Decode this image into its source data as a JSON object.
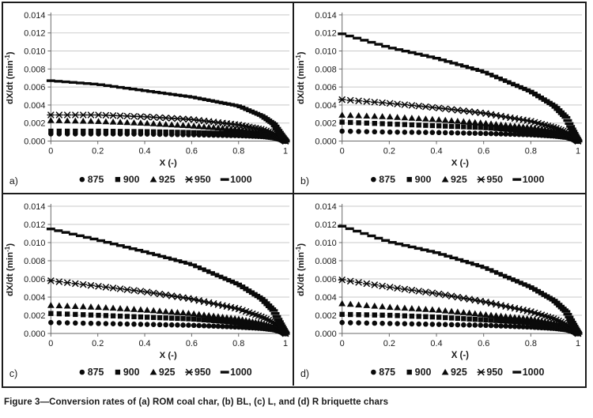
{
  "caption": "Figure 3—Conversion rates of (a) ROM coal char, (b) BL, (c) L, and (d) R briquette chars",
  "colors": {
    "marker": "#0a0a0a",
    "gridline": "#c8c8c8",
    "axis": "#6a6a6a",
    "text": "#1a1a1a",
    "border": "#1c1c1c",
    "background": "#ffffff"
  },
  "chart_data": [
    {
      "id": "a",
      "panel_label": "a)",
      "material": "ROM coal char",
      "type": "scatter",
      "xlabel": "X (-)",
      "ylabel": "dX/dt (min⁻¹)",
      "xlim": [
        0,
        1
      ],
      "ylim": [
        0,
        0.014
      ],
      "xticklabels": [
        "0",
        "0.2",
        "0.4",
        "0.6",
        "0.8",
        "1"
      ],
      "yticklabels": [
        "0.000",
        "0.002",
        "0.004",
        "0.006",
        "0.008",
        "0.010",
        "0.012",
        "0.014"
      ],
      "grid": "horizontal",
      "legend_position": "bottom",
      "x_knots": [
        0,
        0.2,
        0.4,
        0.6,
        0.8,
        0.9,
        0.95,
        1
      ],
      "series": [
        {
          "name": "875",
          "marker": "circle",
          "values": [
            0.0008,
            0.0008,
            0.00078,
            0.0007,
            0.0006,
            0.0005,
            0.00035,
            0
          ]
        },
        {
          "name": "900",
          "marker": "square",
          "values": [
            0.0011,
            0.0011,
            0.00105,
            0.00095,
            0.0008,
            0.00062,
            0.00045,
            0
          ]
        },
        {
          "name": "925",
          "marker": "triangle",
          "values": [
            0.0023,
            0.0022,
            0.002,
            0.0017,
            0.0013,
            0.00095,
            0.00065,
            0
          ]
        },
        {
          "name": "950",
          "marker": "star",
          "values": [
            0.0029,
            0.0029,
            0.0027,
            0.0024,
            0.0018,
            0.0013,
            0.00085,
            0
          ]
        },
        {
          "name": "1000",
          "marker": "dash",
          "values": [
            0.0067,
            0.0063,
            0.0056,
            0.0049,
            0.0039,
            0.0028,
            0.0019,
            0
          ]
        }
      ]
    },
    {
      "id": "b",
      "panel_label": "b)",
      "material": "BL briquette char",
      "type": "scatter",
      "xlabel": "X (-)",
      "ylabel": "dX/dt (min⁻¹)",
      "xlim": [
        0,
        1
      ],
      "ylim": [
        0,
        0.014
      ],
      "xticklabels": [
        "0",
        "0.2",
        "0.4",
        "0.6",
        "0.8",
        "1"
      ],
      "yticklabels": [
        "0.000",
        "0.002",
        "0.004",
        "0.006",
        "0.008",
        "0.010",
        "0.012",
        "0.014"
      ],
      "grid": "horizontal",
      "legend_position": "bottom",
      "x_knots": [
        0,
        0.2,
        0.4,
        0.6,
        0.8,
        0.9,
        0.95,
        1
      ],
      "series": [
        {
          "name": "875",
          "marker": "circle",
          "values": [
            0.0011,
            0.001,
            0.00095,
            0.00085,
            0.0007,
            0.00055,
            0.0004,
            0
          ]
        },
        {
          "name": "900",
          "marker": "square",
          "values": [
            0.0021,
            0.0019,
            0.0017,
            0.0015,
            0.0011,
            0.0008,
            0.00055,
            0
          ]
        },
        {
          "name": "925",
          "marker": "triangle",
          "values": [
            0.0029,
            0.0027,
            0.0024,
            0.002,
            0.0015,
            0.0011,
            0.0007,
            0
          ]
        },
        {
          "name": "950",
          "marker": "star",
          "values": [
            0.0046,
            0.0042,
            0.0037,
            0.0031,
            0.0022,
            0.0015,
            0.001,
            0
          ]
        },
        {
          "name": "1000",
          "marker": "dash",
          "values": [
            0.0119,
            0.0104,
            0.0092,
            0.0077,
            0.0055,
            0.0039,
            0.0026,
            0
          ]
        }
      ]
    },
    {
      "id": "c",
      "panel_label": "c)",
      "material": "L briquette char",
      "type": "scatter",
      "xlabel": "X (-)",
      "ylabel": "dX/dt (min⁻¹)",
      "xlim": [
        0,
        1
      ],
      "ylim": [
        0,
        0.014
      ],
      "xticklabels": [
        "0",
        "0.2",
        "0.4",
        "0.6",
        "0.8",
        "1"
      ],
      "yticklabels": [
        "0.000",
        "0.002",
        "0.004",
        "0.006",
        "0.008",
        "0.010",
        "0.012",
        "0.014"
      ],
      "grid": "horizontal",
      "legend_position": "bottom",
      "x_knots": [
        0,
        0.2,
        0.4,
        0.6,
        0.8,
        0.9,
        0.95,
        1
      ],
      "series": [
        {
          "name": "875",
          "marker": "circle",
          "values": [
            0.0012,
            0.0011,
            0.001,
            0.0009,
            0.0007,
            0.00055,
            0.0004,
            0
          ]
        },
        {
          "name": "900",
          "marker": "square",
          "values": [
            0.0022,
            0.002,
            0.0018,
            0.0016,
            0.0012,
            0.0009,
            0.0006,
            0
          ]
        },
        {
          "name": "925",
          "marker": "triangle",
          "values": [
            0.0031,
            0.0029,
            0.0026,
            0.0022,
            0.0016,
            0.0011,
            0.0007,
            0
          ]
        },
        {
          "name": "950",
          "marker": "star",
          "values": [
            0.0058,
            0.0052,
            0.0046,
            0.0038,
            0.0027,
            0.0018,
            0.0012,
            0
          ]
        },
        {
          "name": "1000",
          "marker": "dash",
          "values": [
            0.0115,
            0.0103,
            0.009,
            0.0076,
            0.0054,
            0.0038,
            0.0025,
            0
          ]
        }
      ]
    },
    {
      "id": "d",
      "panel_label": "d)",
      "material": "R briquette char",
      "type": "scatter",
      "xlabel": "X (-)",
      "ylabel": "dX/dt (min⁻¹)",
      "xlim": [
        0,
        1
      ],
      "ylim": [
        0,
        0.014
      ],
      "xticklabels": [
        "0",
        "0.2",
        "0.4",
        "0.6",
        "0.8",
        "1"
      ],
      "yticklabels": [
        "0.000",
        "0.002",
        "0.004",
        "0.006",
        "0.008",
        "0.010",
        "0.012",
        "0.014"
      ],
      "grid": "horizontal",
      "legend_position": "bottom",
      "x_knots": [
        0,
        0.2,
        0.4,
        0.6,
        0.8,
        0.9,
        0.95,
        1
      ],
      "series": [
        {
          "name": "875",
          "marker": "circle",
          "values": [
            0.0012,
            0.0011,
            0.001,
            0.0009,
            0.0007,
            0.00055,
            0.0004,
            0
          ]
        },
        {
          "name": "900",
          "marker": "square",
          "values": [
            0.0021,
            0.002,
            0.0018,
            0.0015,
            0.0012,
            0.0009,
            0.0006,
            0
          ]
        },
        {
          "name": "925",
          "marker": "triangle",
          "values": [
            0.0033,
            0.0029,
            0.0026,
            0.0021,
            0.0016,
            0.0011,
            0.0007,
            0
          ]
        },
        {
          "name": "950",
          "marker": "star",
          "values": [
            0.0059,
            0.0051,
            0.0044,
            0.0035,
            0.0024,
            0.0016,
            0.001,
            0
          ]
        },
        {
          "name": "1000",
          "marker": "dash",
          "values": [
            0.0118,
            0.0101,
            0.0089,
            0.0073,
            0.0051,
            0.0036,
            0.0024,
            0
          ]
        }
      ]
    }
  ]
}
